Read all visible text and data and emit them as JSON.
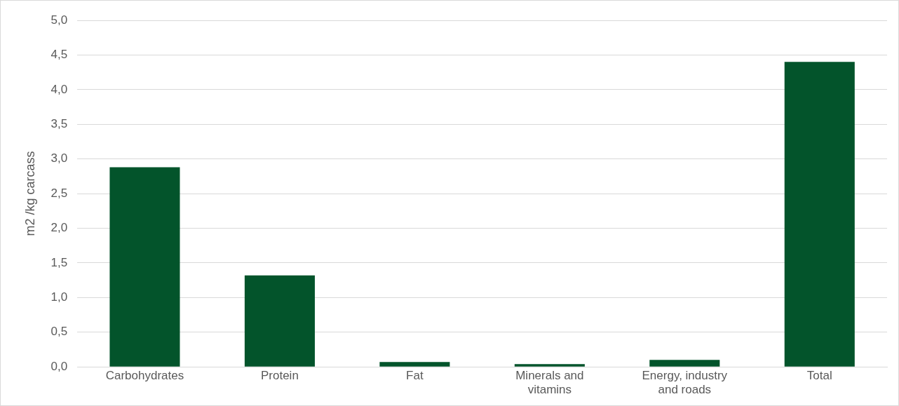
{
  "chart_data": {
    "type": "bar",
    "ylabel": "m2 /kg carcass",
    "categories": [
      "Carbohydrates",
      "Protein",
      "Fat",
      "Minerals and vitamins",
      "Energy, industry and roads",
      "Total"
    ],
    "values": [
      2.88,
      1.32,
      0.07,
      0.04,
      0.1,
      4.4
    ],
    "color": "#03542b",
    "ylim": [
      0,
      5
    ],
    "yticks": [
      {
        "value": 0,
        "label": "0,0"
      },
      {
        "value": 0.5,
        "label": "0,5"
      },
      {
        "value": 1,
        "label": "1,0"
      },
      {
        "value": 1.5,
        "label": "1,5"
      },
      {
        "value": 2,
        "label": "2,0"
      },
      {
        "value": 2.5,
        "label": "2,5"
      },
      {
        "value": 3,
        "label": "3,0"
      },
      {
        "value": 3.5,
        "label": "3,5"
      },
      {
        "value": 4,
        "label": "4,0"
      },
      {
        "value": 4.5,
        "label": "4,5"
      },
      {
        "value": 5,
        "label": "5,0"
      }
    ],
    "grid": "y"
  }
}
